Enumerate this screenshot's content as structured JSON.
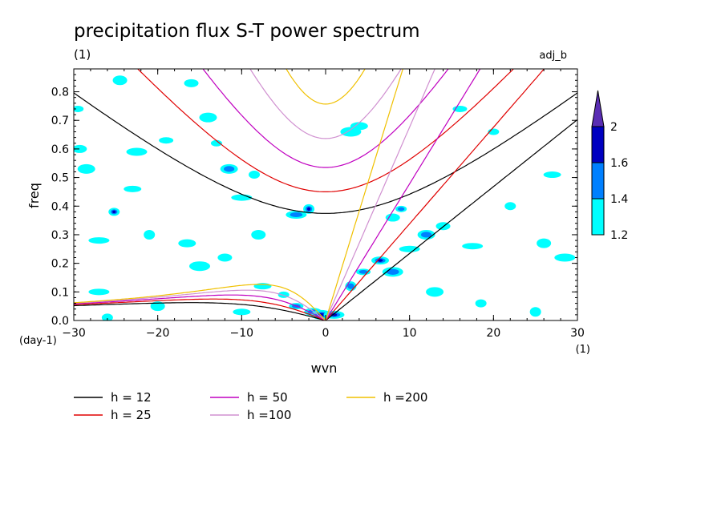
{
  "chart_data": {
    "type": "heatmap",
    "title": "precipitation flux S-T power spectrum",
    "subtitle_left": "(1)",
    "subtitle_right": "adj_b",
    "xlabel": "wvn",
    "ylabel": "freq",
    "xunit": "(1)",
    "yunit": "(day-1)",
    "xlim": [
      -30,
      30
    ],
    "ylim": [
      0,
      0.88
    ],
    "x_ticks": [
      -30,
      -20,
      -10,
      0,
      10,
      20,
      30
    ],
    "x_tick_labels": [
      "−30",
      "−20",
      "−10",
      "0",
      "10",
      "20",
      "30"
    ],
    "y_ticks": [
      0,
      0.1,
      0.2,
      0.3,
      0.4,
      0.5,
      0.6,
      0.7,
      0.8
    ],
    "y_tick_labels": [
      "0.0",
      "0.1",
      "0.2",
      "0.3",
      "0.4",
      "0.5",
      "0.6",
      "0.7",
      "0.8"
    ],
    "colorbar": {
      "levels": [
        1.2,
        1.4,
        1.6,
        2
      ],
      "labels": [
        "1.2",
        "1.4",
        "1.6",
        "2"
      ],
      "colors": [
        "#00ffff",
        "#0080ff",
        "#0000c0",
        "#5a2db4"
      ]
    },
    "dispersion_curves": [
      {
        "name": "h = 12",
        "h": 12,
        "color": "#000000"
      },
      {
        "name": "h = 25",
        "h": 25,
        "color": "#e00000"
      },
      {
        "name": "h = 50",
        "h": 50,
        "color": "#c000c0"
      },
      {
        "name": "h =100",
        "h": 100,
        "color": "#d090d0"
      },
      {
        "name": "h =200",
        "h": 200,
        "color": "#f0c000"
      }
    ],
    "blobs": [
      {
        "x": -29.5,
        "y": 0.74,
        "level": 1
      },
      {
        "x": -29.3,
        "y": 0.6,
        "level": 1
      },
      {
        "x": -28.5,
        "y": 0.53,
        "level": 1
      },
      {
        "x": -27,
        "y": 0.28,
        "level": 1
      },
      {
        "x": -25.2,
        "y": 0.38,
        "level": 3
      },
      {
        "x": -24.5,
        "y": 0.84,
        "level": 1
      },
      {
        "x": -23,
        "y": 0.46,
        "level": 1
      },
      {
        "x": -22.5,
        "y": 0.59,
        "level": 1
      },
      {
        "x": -21,
        "y": 0.3,
        "level": 1
      },
      {
        "x": -19,
        "y": 0.63,
        "level": 1
      },
      {
        "x": -16.5,
        "y": 0.27,
        "level": 1
      },
      {
        "x": -15,
        "y": 0.19,
        "level": 1
      },
      {
        "x": -13,
        "y": 0.62,
        "level": 1
      },
      {
        "x": -12,
        "y": 0.22,
        "level": 1
      },
      {
        "x": -11.5,
        "y": 0.53,
        "level": 2
      },
      {
        "x": -10,
        "y": 0.43,
        "level": 1
      },
      {
        "x": -8.5,
        "y": 0.51,
        "level": 1
      },
      {
        "x": -8,
        "y": 0.3,
        "level": 1
      },
      {
        "x": -7.5,
        "y": 0.12,
        "level": 1
      },
      {
        "x": -3.5,
        "y": 0.37,
        "level": 2
      },
      {
        "x": -2,
        "y": 0.39,
        "level": 3
      },
      {
        "x": -3.5,
        "y": 0.05,
        "level": 2
      },
      {
        "x": -1.5,
        "y": 0.03,
        "level": 2
      },
      {
        "x": -0.5,
        "y": 0.02,
        "level": 3
      },
      {
        "x": -5,
        "y": 0.09,
        "level": 1
      },
      {
        "x": -16,
        "y": 0.83,
        "level": 1
      },
      {
        "x": -14,
        "y": 0.71,
        "level": 1
      },
      {
        "x": -27,
        "y": 0.1,
        "level": 1
      },
      {
        "x": -26,
        "y": 0.01,
        "level": 1
      },
      {
        "x": -20,
        "y": 0.05,
        "level": 1
      },
      {
        "x": -10,
        "y": 0.03,
        "level": 1
      },
      {
        "x": 1,
        "y": 0.02,
        "level": 3
      },
      {
        "x": 3,
        "y": 0.12,
        "level": 2
      },
      {
        "x": 4.5,
        "y": 0.17,
        "level": 2
      },
      {
        "x": 6.5,
        "y": 0.21,
        "level": 3
      },
      {
        "x": 8,
        "y": 0.17,
        "level": 2
      },
      {
        "x": 9,
        "y": 0.39,
        "level": 2
      },
      {
        "x": 8,
        "y": 0.36,
        "level": 1
      },
      {
        "x": 12,
        "y": 0.3,
        "level": 2
      },
      {
        "x": 17.5,
        "y": 0.26,
        "level": 1
      },
      {
        "x": 18.5,
        "y": 0.06,
        "level": 1
      },
      {
        "x": 26,
        "y": 0.27,
        "level": 1
      },
      {
        "x": 27,
        "y": 0.51,
        "level": 1
      },
      {
        "x": 28.5,
        "y": 0.22,
        "level": 1
      },
      {
        "x": 25,
        "y": 0.03,
        "level": 1
      },
      {
        "x": 16,
        "y": 0.74,
        "level": 1
      },
      {
        "x": 4,
        "y": 0.68,
        "level": 1
      },
      {
        "x": 3,
        "y": 0.66,
        "level": 1
      },
      {
        "x": 20,
        "y": 0.66,
        "level": 1
      },
      {
        "x": 14,
        "y": 0.33,
        "level": 1
      },
      {
        "x": 13,
        "y": 0.1,
        "level": 1
      },
      {
        "x": 10,
        "y": 0.25,
        "level": 1
      },
      {
        "x": 22,
        "y": 0.4,
        "level": 1
      }
    ]
  },
  "legend_entries": [
    {
      "label": "h = 12",
      "color": "#000000"
    },
    {
      "label": "h = 25",
      "color": "#e00000"
    },
    {
      "label": "h = 50",
      "color": "#c000c0"
    },
    {
      "label": "h =100",
      "color": "#d090d0"
    },
    {
      "label": "h =200",
      "color": "#f0c000"
    }
  ]
}
